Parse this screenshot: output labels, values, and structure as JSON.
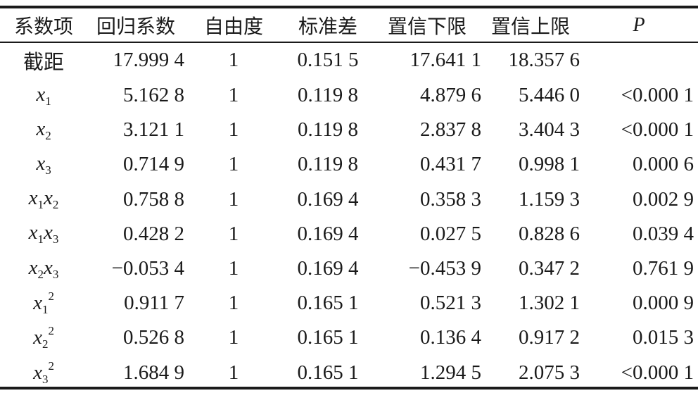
{
  "table": {
    "headers": [
      "系数项",
      "回归系数",
      "自由度",
      "标准差",
      "置信下限",
      "置信上限",
      "P"
    ],
    "rows": [
      {
        "term": "截距",
        "coef": "17.999 4",
        "df": "1",
        "se": "0.151 5",
        "lower": "17.641 1",
        "upper": "18.357 6",
        "p": ""
      },
      {
        "term": "x1",
        "coef": "5.162 8",
        "df": "1",
        "se": "0.119 8",
        "lower": "4.879 6",
        "upper": "5.446 0",
        "p": "<0.000 1"
      },
      {
        "term": "x2",
        "coef": "3.121 1",
        "df": "1",
        "se": "0.119 8",
        "lower": "2.837 8",
        "upper": "3.404 3",
        "p": "<0.000 1"
      },
      {
        "term": "x3",
        "coef": "0.714 9",
        "df": "1",
        "se": "0.119 8",
        "lower": "0.431 7",
        "upper": "0.998 1",
        "p": "0.000 6"
      },
      {
        "term": "x1x2",
        "coef": "0.758 8",
        "df": "1",
        "se": "0.169 4",
        "lower": "0.358 3",
        "upper": "1.159 3",
        "p": "0.002 9"
      },
      {
        "term": "x1x3",
        "coef": "0.428 2",
        "df": "1",
        "se": "0.169 4",
        "lower": "0.027 5",
        "upper": "0.828 6",
        "p": "0.039 4"
      },
      {
        "term": "x2x3",
        "coef": "−0.053 4",
        "df": "1",
        "se": "0.169 4",
        "lower": "−0.453 9",
        "upper": "0.347 2",
        "p": "0.761 9"
      },
      {
        "term": "x1^2",
        "coef": "0.911 7",
        "df": "1",
        "se": "0.165 1",
        "lower": "0.521 3",
        "upper": "1.302 1",
        "p": "0.000 9"
      },
      {
        "term": "x2^2",
        "coef": "0.526 8",
        "df": "1",
        "se": "0.165 1",
        "lower": "0.136 4",
        "upper": "0.917 2",
        "p": "0.015 3"
      },
      {
        "term": "x3^2",
        "coef": "1.684 9",
        "df": "1",
        "se": "0.165 1",
        "lower": "1.294 5",
        "upper": "2.075 3",
        "p": "<0.000 1"
      }
    ]
  }
}
